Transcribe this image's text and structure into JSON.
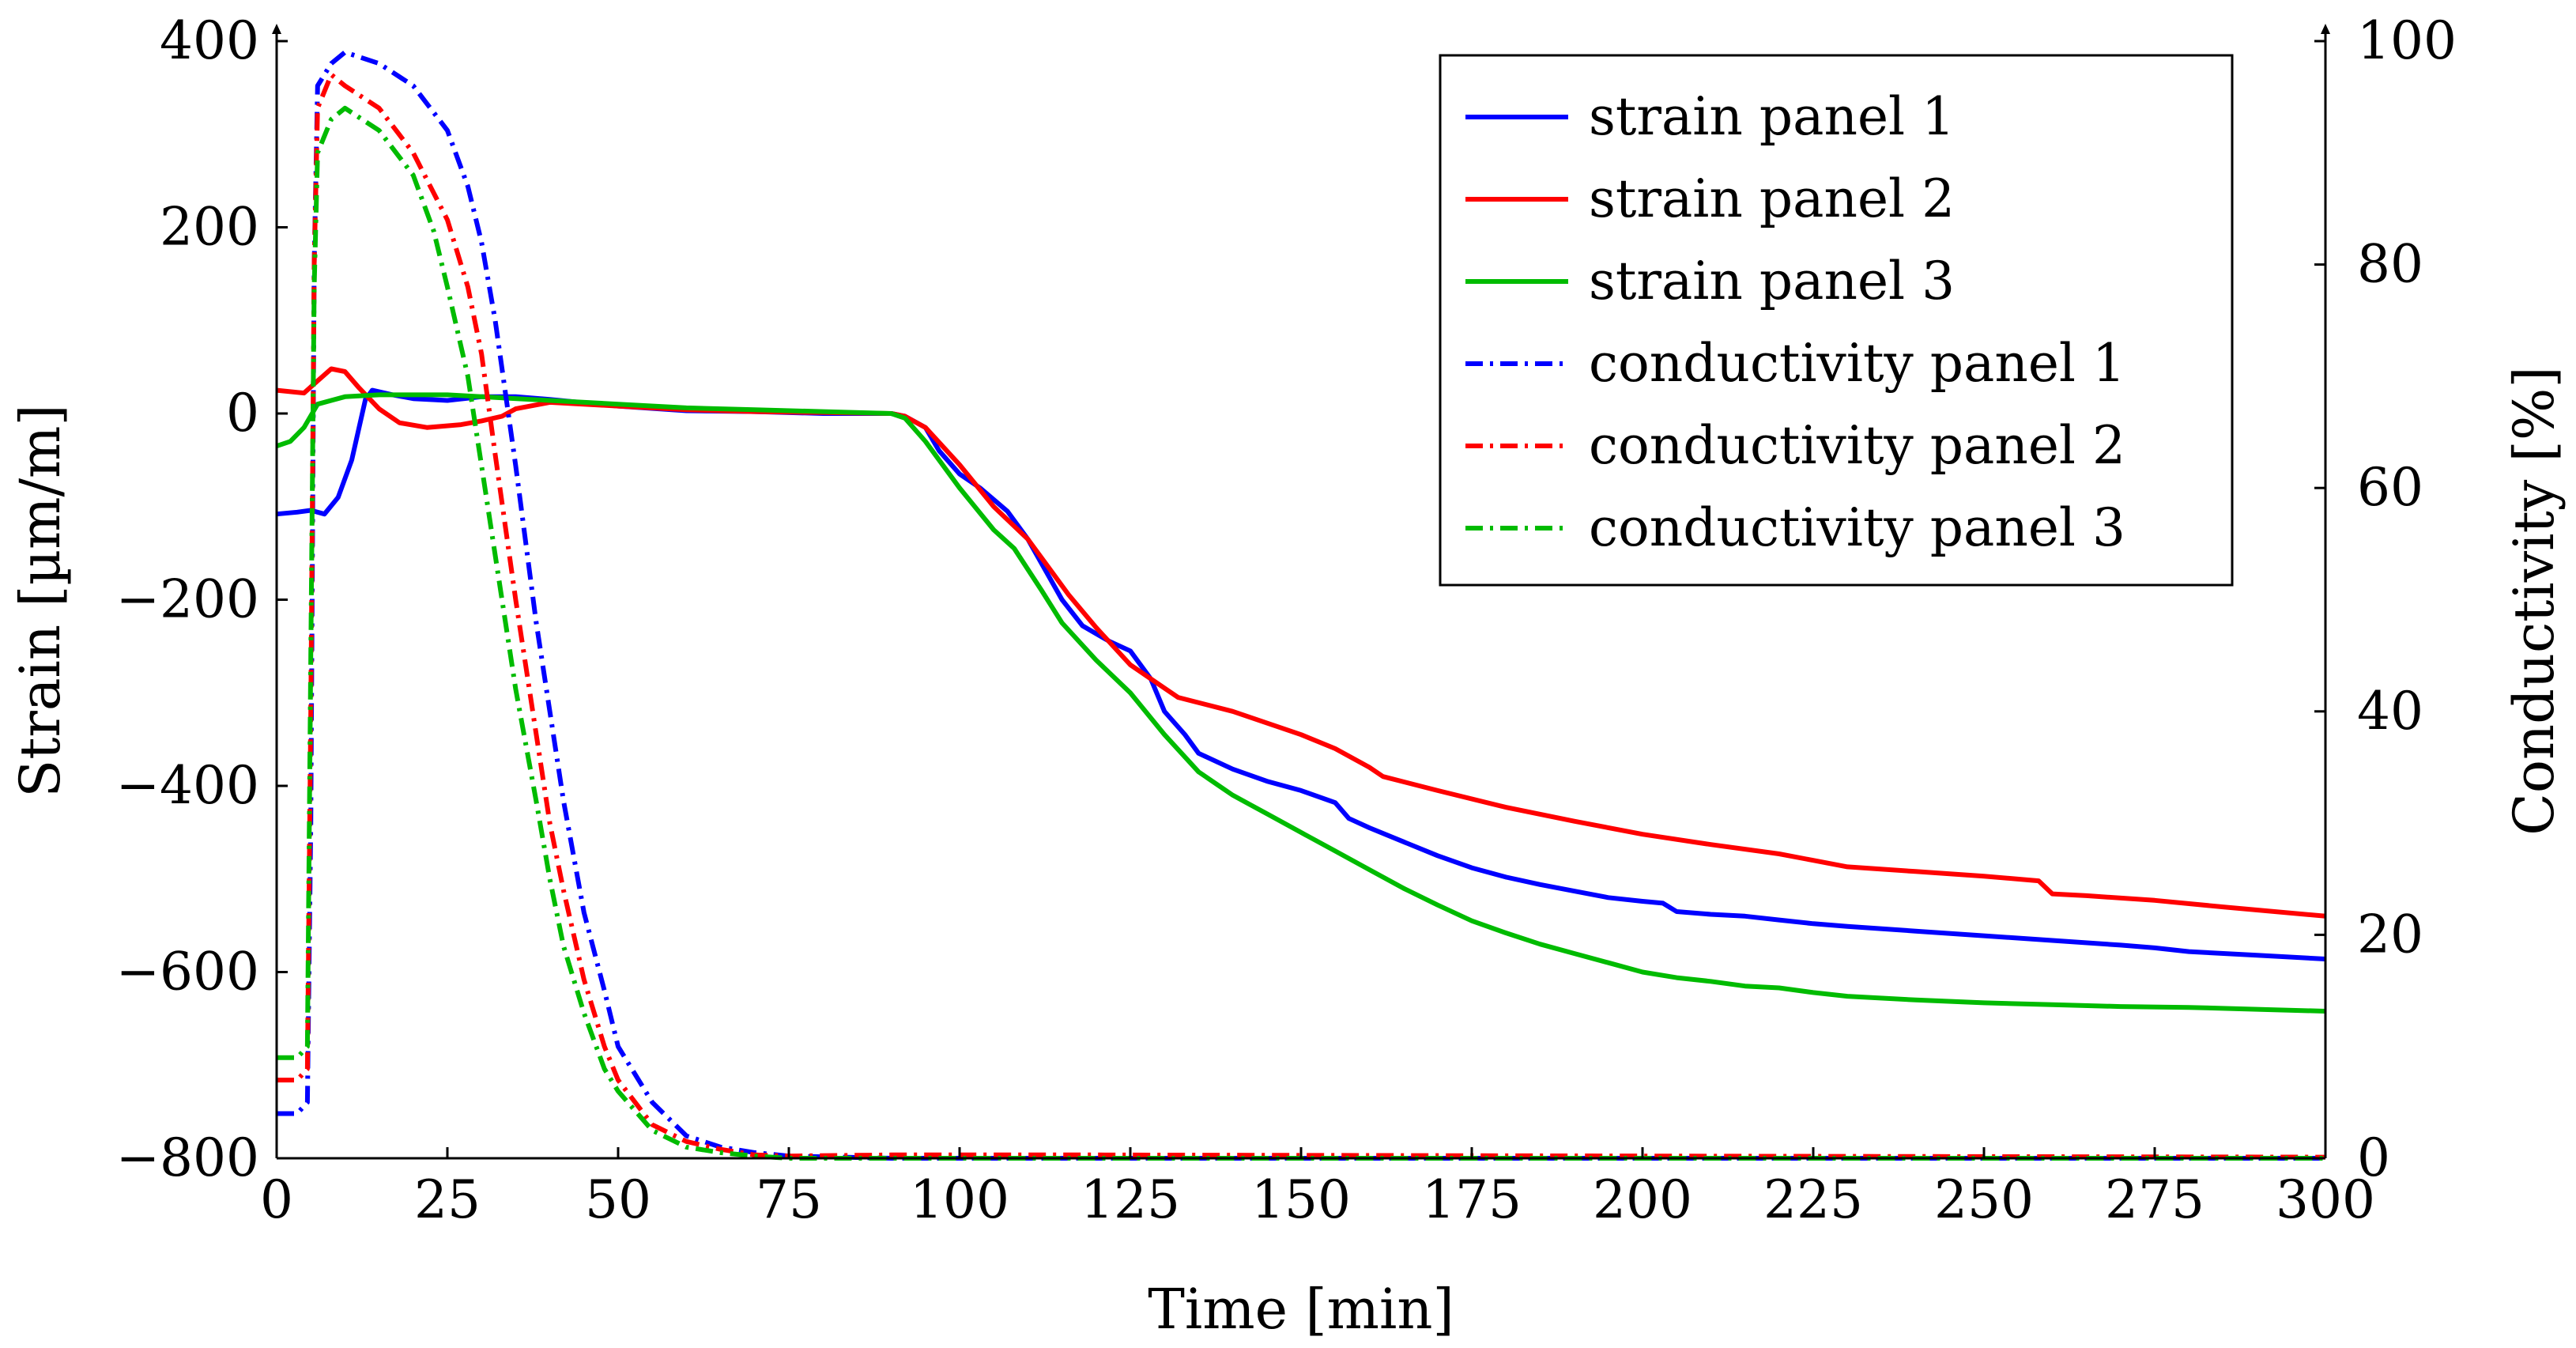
{
  "chart_data": {
    "type": "line",
    "xlabel": "Time [min]",
    "ylabel": "Strain [µm/m]",
    "y2label": "Conductivity [%]",
    "xlim": [
      0,
      300
    ],
    "ylim": [
      -800,
      400
    ],
    "y2lim": [
      0,
      100
    ],
    "xticks": [
      0,
      25,
      50,
      75,
      100,
      125,
      150,
      175,
      200,
      225,
      250,
      275,
      300
    ],
    "yticks": [
      -800,
      -600,
      -400,
      -200,
      0,
      200,
      400
    ],
    "y2ticks": [
      0,
      20,
      40,
      60,
      80,
      100
    ],
    "xtick_labels": [
      "0",
      "25",
      "50",
      "75",
      "100",
      "125",
      "150",
      "175",
      "200",
      "225",
      "250",
      "275",
      "300"
    ],
    "ytick_labels": [
      "−800",
      "−600",
      "−400",
      "−200",
      "0",
      "200",
      "400"
    ],
    "y2tick_labels": [
      "0",
      "20",
      "40",
      "60",
      "80",
      "100"
    ],
    "legend_position": "top-right",
    "series": [
      {
        "name": "strain panel 1",
        "axis": "left",
        "color": "#0000ff",
        "style": "solid",
        "points": [
          [
            0,
            -108
          ],
          [
            3,
            -106
          ],
          [
            5,
            -104
          ],
          [
            7,
            -108
          ],
          [
            9,
            -90
          ],
          [
            11,
            -50
          ],
          [
            13,
            15
          ],
          [
            14,
            25
          ],
          [
            17,
            20
          ],
          [
            20,
            16
          ],
          [
            25,
            14
          ],
          [
            30,
            18
          ],
          [
            35,
            18
          ],
          [
            40,
            15
          ],
          [
            50,
            8
          ],
          [
            60,
            3
          ],
          [
            70,
            2
          ],
          [
            80,
            0
          ],
          [
            90,
            0
          ],
          [
            92,
            -3
          ],
          [
            95,
            -15
          ],
          [
            97,
            -40
          ],
          [
            100,
            -65
          ],
          [
            103,
            -80
          ],
          [
            107,
            -105
          ],
          [
            110,
            -135
          ],
          [
            115,
            -200
          ],
          [
            118,
            -228
          ],
          [
            122,
            -245
          ],
          [
            125,
            -255
          ],
          [
            128,
            -285
          ],
          [
            130,
            -320
          ],
          [
            133,
            -345
          ],
          [
            135,
            -365
          ],
          [
            140,
            -382
          ],
          [
            145,
            -395
          ],
          [
            150,
            -405
          ],
          [
            155,
            -418
          ],
          [
            157,
            -435
          ],
          [
            160,
            -445
          ],
          [
            165,
            -460
          ],
          [
            170,
            -475
          ],
          [
            175,
            -488
          ],
          [
            180,
            -498
          ],
          [
            185,
            -506
          ],
          [
            190,
            -513
          ],
          [
            195,
            -520
          ],
          [
            200,
            -524
          ],
          [
            203,
            -526
          ],
          [
            205,
            -535
          ],
          [
            210,
            -538
          ],
          [
            215,
            -540
          ],
          [
            220,
            -544
          ],
          [
            225,
            -548
          ],
          [
            230,
            -551
          ],
          [
            240,
            -556
          ],
          [
            250,
            -561
          ],
          [
            260,
            -566
          ],
          [
            270,
            -571
          ],
          [
            275,
            -574
          ],
          [
            280,
            -578
          ],
          [
            290,
            -582
          ],
          [
            300,
            -586
          ]
        ]
      },
      {
        "name": "strain panel 2",
        "axis": "left",
        "color": "#ff0000",
        "style": "solid",
        "points": [
          [
            0,
            25
          ],
          [
            4,
            22
          ],
          [
            6,
            35
          ],
          [
            8,
            48
          ],
          [
            10,
            45
          ],
          [
            12,
            28
          ],
          [
            15,
            5
          ],
          [
            18,
            -10
          ],
          [
            22,
            -15
          ],
          [
            27,
            -12
          ],
          [
            30,
            -8
          ],
          [
            33,
            -3
          ],
          [
            35,
            5
          ],
          [
            40,
            12
          ],
          [
            50,
            8
          ],
          [
            60,
            4
          ],
          [
            70,
            2
          ],
          [
            80,
            1
          ],
          [
            90,
            0
          ],
          [
            92,
            -3
          ],
          [
            95,
            -15
          ],
          [
            100,
            -55
          ],
          [
            105,
            -100
          ],
          [
            110,
            -135
          ],
          [
            113,
            -165
          ],
          [
            116,
            -195
          ],
          [
            120,
            -230
          ],
          [
            125,
            -270
          ],
          [
            130,
            -295
          ],
          [
            132,
            -305
          ],
          [
            140,
            -320
          ],
          [
            150,
            -345
          ],
          [
            155,
            -360
          ],
          [
            160,
            -380
          ],
          [
            162,
            -390
          ],
          [
            170,
            -405
          ],
          [
            180,
            -423
          ],
          [
            190,
            -438
          ],
          [
            200,
            -452
          ],
          [
            210,
            -463
          ],
          [
            220,
            -473
          ],
          [
            225,
            -480
          ],
          [
            230,
            -487
          ],
          [
            240,
            -492
          ],
          [
            250,
            -497
          ],
          [
            258,
            -502
          ],
          [
            260,
            -516
          ],
          [
            265,
            -518
          ],
          [
            275,
            -523
          ],
          [
            285,
            -530
          ],
          [
            300,
            -540
          ]
        ]
      },
      {
        "name": "strain panel 3",
        "axis": "left",
        "color": "#00bb00",
        "style": "solid",
        "points": [
          [
            0,
            -35
          ],
          [
            2,
            -30
          ],
          [
            4,
            -15
          ],
          [
            6,
            10
          ],
          [
            10,
            18
          ],
          [
            15,
            20
          ],
          [
            20,
            20
          ],
          [
            25,
            20
          ],
          [
            30,
            18
          ],
          [
            40,
            14
          ],
          [
            50,
            10
          ],
          [
            60,
            6
          ],
          [
            70,
            4
          ],
          [
            80,
            2
          ],
          [
            90,
            0
          ],
          [
            92,
            -5
          ],
          [
            95,
            -30
          ],
          [
            100,
            -80
          ],
          [
            105,
            -125
          ],
          [
            108,
            -145
          ],
          [
            112,
            -190
          ],
          [
            115,
            -225
          ],
          [
            120,
            -265
          ],
          [
            125,
            -300
          ],
          [
            130,
            -345
          ],
          [
            135,
            -385
          ],
          [
            138,
            -400
          ],
          [
            140,
            -410
          ],
          [
            145,
            -430
          ],
          [
            150,
            -450
          ],
          [
            155,
            -470
          ],
          [
            160,
            -490
          ],
          [
            165,
            -510
          ],
          [
            170,
            -528
          ],
          [
            175,
            -545
          ],
          [
            180,
            -558
          ],
          [
            185,
            -570
          ],
          [
            190,
            -580
          ],
          [
            195,
            -590
          ],
          [
            200,
            -600
          ],
          [
            205,
            -606
          ],
          [
            210,
            -610
          ],
          [
            215,
            -615
          ],
          [
            220,
            -617
          ],
          [
            225,
            -622
          ],
          [
            230,
            -626
          ],
          [
            240,
            -630
          ],
          [
            250,
            -633
          ],
          [
            260,
            -635
          ],
          [
            270,
            -637
          ],
          [
            280,
            -638
          ],
          [
            290,
            -640
          ],
          [
            300,
            -642
          ]
        ]
      },
      {
        "name": "conductivity panel 1",
        "axis": "right",
        "color": "#0000ff",
        "style": "dashdot",
        "points": [
          [
            0,
            4
          ],
          [
            3,
            4
          ],
          [
            4.5,
            5
          ],
          [
            5,
            30
          ],
          [
            5.5,
            80
          ],
          [
            6,
            96
          ],
          [
            8,
            98
          ],
          [
            10,
            99
          ],
          [
            15,
            98
          ],
          [
            20,
            96
          ],
          [
            25,
            92
          ],
          [
            28,
            87
          ],
          [
            30,
            82
          ],
          [
            32,
            75
          ],
          [
            35,
            62
          ],
          [
            38,
            48
          ],
          [
            40,
            40
          ],
          [
            42,
            32
          ],
          [
            45,
            22
          ],
          [
            48,
            15
          ],
          [
            50,
            10
          ],
          [
            55,
            5
          ],
          [
            60,
            2
          ],
          [
            65,
            1
          ],
          [
            70,
            0.5
          ],
          [
            75,
            0.2
          ],
          [
            90,
            0
          ],
          [
            120,
            0
          ],
          [
            200,
            0
          ],
          [
            300,
            0
          ]
        ]
      },
      {
        "name": "conductivity panel 2",
        "axis": "right",
        "color": "#ff0000",
        "style": "dashdot",
        "points": [
          [
            0,
            7
          ],
          [
            3,
            7
          ],
          [
            4.5,
            8
          ],
          [
            5,
            40
          ],
          [
            5.5,
            80
          ],
          [
            6,
            94
          ],
          [
            8,
            97
          ],
          [
            10,
            96
          ],
          [
            15,
            94
          ],
          [
            20,
            90
          ],
          [
            25,
            84
          ],
          [
            28,
            78
          ],
          [
            30,
            72
          ],
          [
            32,
            63
          ],
          [
            35,
            50
          ],
          [
            38,
            38
          ],
          [
            40,
            30
          ],
          [
            42,
            24
          ],
          [
            45,
            16
          ],
          [
            48,
            10
          ],
          [
            50,
            7
          ],
          [
            55,
            3
          ],
          [
            60,
            1.5
          ],
          [
            65,
            0.8
          ],
          [
            70,
            0.3
          ],
          [
            75,
            0.2
          ],
          [
            90,
            0.3
          ],
          [
            120,
            0.3
          ],
          [
            200,
            0.2
          ],
          [
            300,
            0.1
          ]
        ]
      },
      {
        "name": "conductivity panel 3",
        "axis": "right",
        "color": "#00bb00",
        "style": "dashdot",
        "points": [
          [
            0,
            9
          ],
          [
            3,
            9
          ],
          [
            4.5,
            10
          ],
          [
            5,
            45
          ],
          [
            5.5,
            78
          ],
          [
            6,
            90
          ],
          [
            8,
            93
          ],
          [
            10,
            94
          ],
          [
            15,
            92
          ],
          [
            20,
            88
          ],
          [
            23,
            83
          ],
          [
            25,
            78
          ],
          [
            28,
            70
          ],
          [
            30,
            62
          ],
          [
            33,
            50
          ],
          [
            35,
            42
          ],
          [
            38,
            32
          ],
          [
            40,
            25
          ],
          [
            42,
            19
          ],
          [
            45,
            13
          ],
          [
            48,
            8
          ],
          [
            50,
            6
          ],
          [
            55,
            2.5
          ],
          [
            60,
            1
          ],
          [
            65,
            0.5
          ],
          [
            70,
            0.2
          ],
          [
            75,
            0
          ],
          [
            90,
            0
          ],
          [
            120,
            0
          ],
          [
            200,
            0
          ],
          [
            300,
            0
          ]
        ]
      }
    ]
  }
}
